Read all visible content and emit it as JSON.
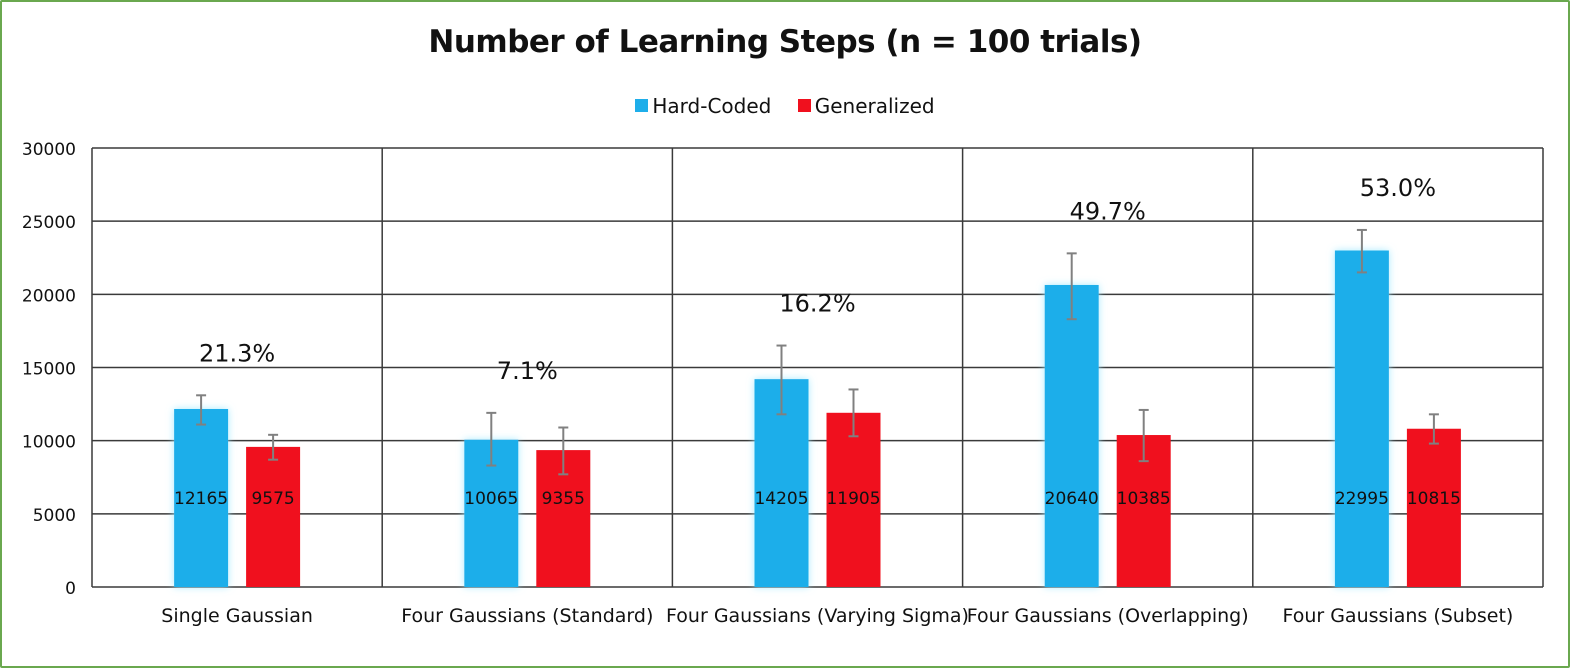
{
  "chart_data": {
    "type": "bar",
    "title": "Number of Learning Steps (n = 100 trials)",
    "categories": [
      "Single Gaussian",
      "Four Gaussians (Standard)",
      "Four Gaussians (Varying Sigma)",
      "Four Gaussians (Overlapping)",
      "Four Gaussians (Subset)"
    ],
    "series": [
      {
        "name": "Hard-Coded",
        "color": "#1eaeea",
        "values": [
          12165,
          10065,
          14205,
          20640,
          22995
        ],
        "error_bars": [
          [
            11100,
            13100
          ],
          [
            8300,
            11900
          ],
          [
            11800,
            16500
          ],
          [
            18300,
            22800
          ],
          [
            21500,
            24400
          ]
        ]
      },
      {
        "name": "Generalized",
        "color": "#f0101e",
        "values": [
          9575,
          9355,
          11905,
          10385,
          10815
        ],
        "error_bars": [
          [
            8700,
            10400
          ],
          [
            7700,
            10900
          ],
          [
            10300,
            13500
          ],
          [
            8600,
            12100
          ],
          [
            9800,
            11800
          ]
        ]
      }
    ],
    "data_labels": [
      [
        "12165",
        "10065",
        "14205",
        "20640",
        "22995"
      ],
      [
        "9575",
        "9355",
        "11905",
        "10385",
        "10815"
      ]
    ],
    "annotations": [
      "21.3%",
      "7.1%",
      "16.2%",
      "49.7%",
      "53.0%"
    ],
    "yticks": [
      "0",
      "5000",
      "10000",
      "15000",
      "20000",
      "25000",
      "30000"
    ],
    "ylim": [
      0,
      30000
    ],
    "xlabel": "",
    "ylabel": "",
    "grid": true,
    "legend_position": "top"
  }
}
